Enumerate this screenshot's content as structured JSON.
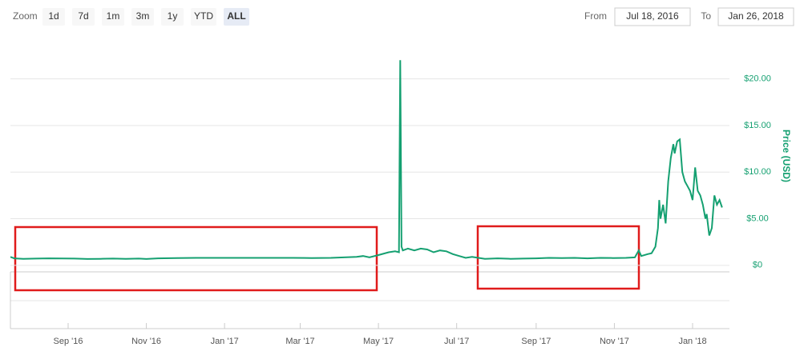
{
  "chart_data": {
    "type": "line",
    "zoom_label": "Zoom",
    "zoom_buttons": [
      "1d",
      "7d",
      "1m",
      "3m",
      "1y",
      "YTD",
      "ALL"
    ],
    "active_zoom": "ALL",
    "from_label": "From",
    "from_date": "Jul 18, 2016",
    "to_label": "To",
    "to_date": "Jan 26, 2018",
    "y_axis_label": "Price (USD)",
    "xlim": [
      0,
      557
    ],
    "xticks": [
      {
        "value": 45,
        "label": "Sep '16"
      },
      {
        "value": 106,
        "label": "Nov '16"
      },
      {
        "value": 167,
        "label": "Jan '17"
      },
      {
        "value": 226,
        "label": "Mar '17"
      },
      {
        "value": 287,
        "label": "May '17"
      },
      {
        "value": 348,
        "label": "Jul '17"
      },
      {
        "value": 410,
        "label": "Sep '17"
      },
      {
        "value": 471,
        "label": "Nov '17"
      },
      {
        "value": 532,
        "label": "Jan '18"
      }
    ],
    "ylim": [
      -0.7,
      24
    ],
    "yticks": [
      {
        "value": 0,
        "label": "$0"
      },
      {
        "value": 5,
        "label": "$5.00"
      },
      {
        "value": 10,
        "label": "$10.00"
      },
      {
        "value": 15,
        "label": "$15.00"
      },
      {
        "value": 20,
        "label": "$20.00"
      }
    ],
    "grid": true,
    "color": "#15a071",
    "x": [
      0,
      3,
      10,
      20,
      30,
      40,
      50,
      60,
      70,
      80,
      90,
      100,
      106,
      115,
      130,
      145,
      160,
      175,
      190,
      205,
      220,
      235,
      250,
      260,
      270,
      275,
      280,
      287,
      295,
      300,
      303,
      304,
      305,
      306,
      310,
      315,
      320,
      325,
      330,
      335,
      340,
      345,
      350,
      355,
      360,
      370,
      380,
      390,
      400,
      410,
      420,
      430,
      440,
      450,
      460,
      470,
      480,
      487,
      490,
      492,
      497,
      500,
      503,
      505,
      506,
      507,
      509,
      511,
      513,
      515,
      517,
      518,
      520,
      522,
      524,
      526,
      528,
      530,
      532,
      534,
      536,
      538,
      540,
      542,
      543,
      545,
      547,
      549,
      551,
      553,
      555
    ],
    "values": [
      0.9,
      0.75,
      0.7,
      0.72,
      0.75,
      0.73,
      0.72,
      0.68,
      0.7,
      0.72,
      0.7,
      0.72,
      0.68,
      0.75,
      0.78,
      0.8,
      0.8,
      0.8,
      0.8,
      0.8,
      0.8,
      0.78,
      0.8,
      0.85,
      0.9,
      1.0,
      0.85,
      1.1,
      1.4,
      1.5,
      1.4,
      22,
      2,
      1.6,
      1.8,
      1.6,
      1.8,
      1.7,
      1.4,
      1.6,
      1.5,
      1.2,
      1.0,
      0.8,
      0.9,
      0.7,
      0.75,
      0.7,
      0.72,
      0.75,
      0.8,
      0.78,
      0.8,
      0.75,
      0.8,
      0.78,
      0.8,
      0.85,
      1.6,
      1.0,
      1.2,
      1.3,
      2.0,
      4,
      7,
      5,
      6.5,
      4.5,
      9,
      11.5,
      13,
      12,
      13.3,
      13.5,
      10,
      9,
      8.5,
      8,
      7,
      10.5,
      8,
      7.5,
      6.5,
      5,
      5.5,
      3.2,
      4,
      7.5,
      6.5,
      7,
      6.2
    ]
  }
}
